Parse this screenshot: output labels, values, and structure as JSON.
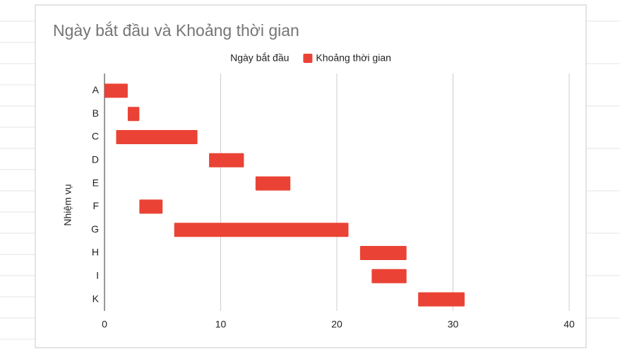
{
  "chart_data": {
    "type": "bar",
    "orientation": "horizontal",
    "stacked": true,
    "title": "Ngày bắt đầu và Khoảng thời gian",
    "y_label": "Nhiệm vụ",
    "categories": [
      "A",
      "B",
      "C",
      "D",
      "E",
      "F",
      "G",
      "H",
      "I",
      "K"
    ],
    "series": [
      {
        "name": "Ngày bắt đầu",
        "color": "transparent",
        "values": [
          0,
          2,
          1,
          9,
          13,
          3,
          6,
          22,
          23,
          27
        ]
      },
      {
        "name": "Khoảng thời gian",
        "color": "#ea4335",
        "values": [
          2,
          1,
          7,
          3,
          3,
          2,
          15,
          4,
          3,
          4
        ]
      }
    ],
    "xlim": [
      0,
      40
    ],
    "xticks": [
      0,
      10,
      20,
      30,
      40
    ],
    "grid": true,
    "legend": "top"
  }
}
